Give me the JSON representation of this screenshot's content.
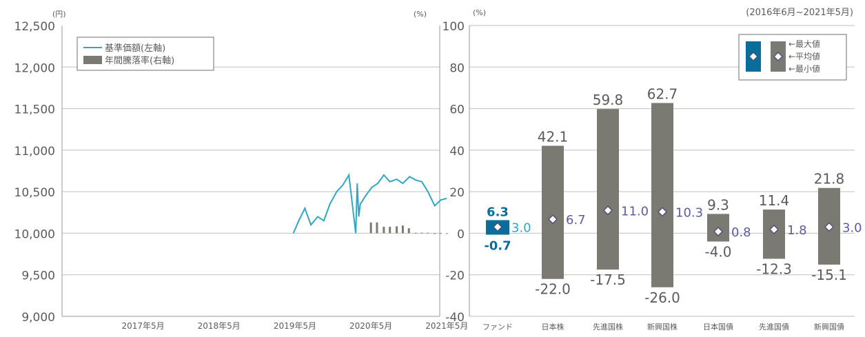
{
  "colors": {
    "nav_line": "#2ea7c4",
    "bar_gray": "#7a7a72",
    "fund_blue": "#0b6e9a",
    "avg_purple": "#5b5ba6",
    "grid": "#bfbfbf",
    "text": "#5b5b5b"
  },
  "chart_data": [
    {
      "type": "line",
      "unit_left": "(円)",
      "unit_right": "(%)",
      "y_ticks": [
        "12,500",
        "12,000",
        "11,500",
        "11,000",
        "10,500",
        "10,000",
        "9,500",
        "9,000"
      ],
      "ylim": [
        9000,
        12500
      ],
      "right_ylim": [
        -40,
        100
      ],
      "x_ticks": [
        "2017年5月",
        "2018年5月",
        "2019年5月",
        "2020年5月",
        "2021年5月"
      ],
      "legend": [
        {
          "label": "基準価額(左軸)",
          "kind": "line"
        },
        {
          "label": "年間騰落率(右軸)",
          "kind": "bar"
        }
      ],
      "legend_position": "top-left",
      "series": [
        {
          "name": "基準価額(左軸)",
          "axis": "left",
          "x": [
            2019.35,
            2019.42,
            2019.5,
            2019.58,
            2019.67,
            2019.75,
            2019.83,
            2019.92,
            2020.0,
            2020.08,
            2020.17,
            2020.19,
            2020.21,
            2020.23,
            2020.3,
            2020.38,
            2020.46,
            2020.54,
            2020.62,
            2020.71,
            2020.79,
            2020.88,
            2020.96,
            2021.04,
            2021.12,
            2021.21,
            2021.29,
            2021.37
          ],
          "values": [
            10000,
            10150,
            10300,
            10100,
            10200,
            10150,
            10350,
            10500,
            10580,
            10700,
            10000,
            10600,
            10200,
            10350,
            10450,
            10550,
            10600,
            10700,
            10620,
            10650,
            10600,
            10680,
            10640,
            10620,
            10500,
            10330,
            10400,
            10420
          ]
        },
        {
          "name": "年間騰落率(右軸)",
          "axis": "right",
          "x": [
            2020.37,
            2020.45,
            2020.54,
            2020.62,
            2020.71,
            2020.79,
            2020.87,
            2020.96,
            2021.04,
            2021.12,
            2021.21,
            2021.29,
            2021.37
          ],
          "values": [
            5.2,
            5.2,
            3.1,
            3.1,
            3.3,
            3.7,
            2.4,
            0.2,
            0.3,
            0.2,
            -0.3,
            0.1,
            -0.3
          ]
        }
      ]
    },
    {
      "type": "bar",
      "unit": "(%)",
      "period": "(2016年6月~2021年5月)",
      "ylim": [
        -40,
        100
      ],
      "y_ticks": [
        "100",
        "80",
        "60",
        "40",
        "20",
        "0",
        "-20",
        "-40"
      ],
      "categories": [
        "ファンド",
        "日本株",
        "先進国株",
        "新興国株",
        "日本国債",
        "先進国債",
        "新興国債"
      ],
      "max": [
        6.3,
        42.1,
        59.8,
        62.7,
        9.3,
        11.4,
        21.8
      ],
      "avg": [
        3.0,
        6.7,
        11.0,
        10.3,
        0.8,
        1.8,
        3.0
      ],
      "min": [
        -0.7,
        -22.0,
        -17.5,
        -26.0,
        -4.0,
        -12.3,
        -15.1
      ],
      "max_labels": [
        "6.3",
        "42.1",
        "59.8",
        "62.7",
        "9.3",
        "11.4",
        "21.8"
      ],
      "avg_labels": [
        "3.0",
        "6.7",
        "11.0",
        "10.3",
        "0.8",
        "1.8",
        "3.0"
      ],
      "min_labels": [
        "-0.7",
        "-22.0",
        "-17.5",
        "-26.0",
        "-4.0",
        "-12.3",
        "-15.1"
      ],
      "legend": [
        "←最大値",
        "←平均値",
        "←最小値"
      ],
      "legend_position": "top-right"
    }
  ]
}
